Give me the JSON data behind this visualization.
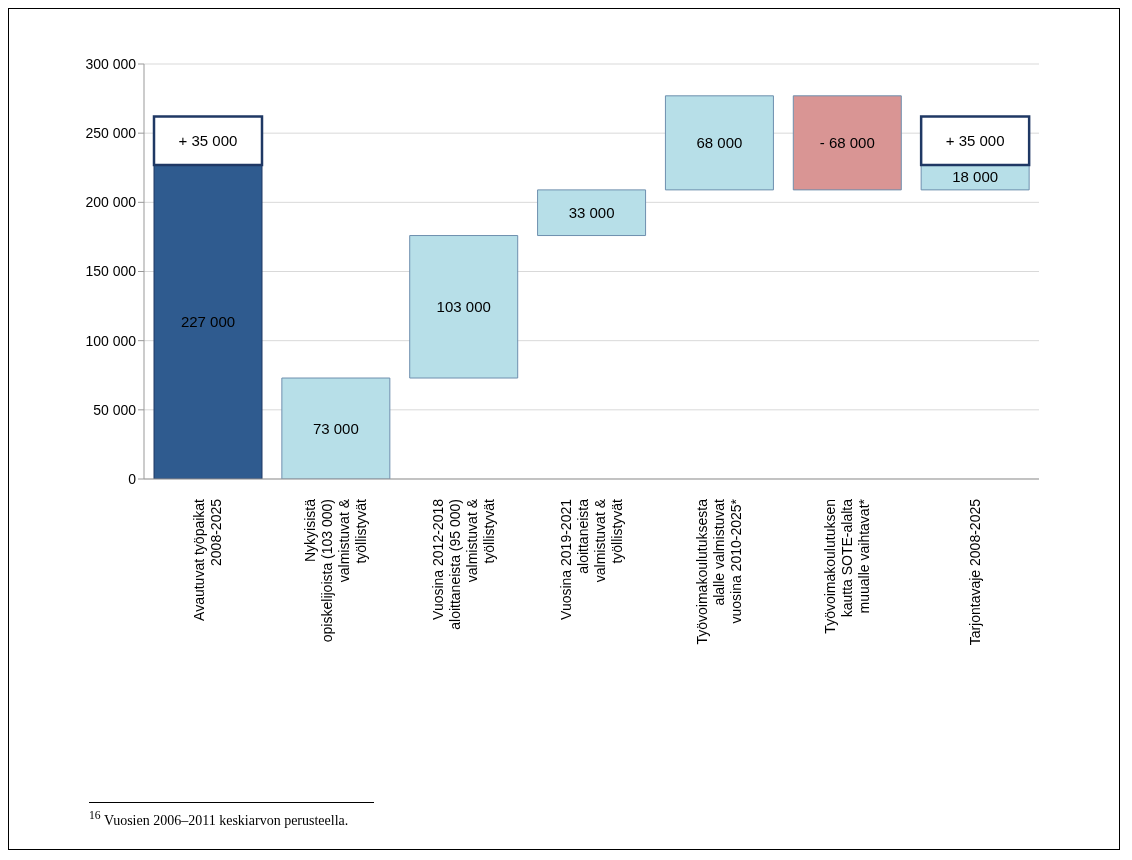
{
  "chart_data": {
    "type": "bar",
    "categories": [
      "Avautuvat työpaikat 2008-2025",
      "Nykyisistä opiskelijoista (103 000) valmistuvat & työllistyvät",
      "Vuosina 2012-2018 aloittaneista (95 000) valmistuvat & työllistyvät",
      "Vuosina 2019-2021 aloittaneista valmistuvat & työllistyvät",
      "Työvoimakoulutuksesta alalle valmistuvat vuosina 2010-2025*",
      "Työvoimakoulutuksen kautta SOTE-alalta muualle vaihtavat*",
      "Tarjontavaje 2008-2025"
    ],
    "series": [
      {
        "colors": [
          "#2f5b8f",
          "#b7dfe8",
          "#b7dfe8",
          "#b7dfe8",
          "#b7dfe8",
          "#d99594",
          "#b7dfe8"
        ],
        "values": [
          227000,
          73000,
          103000,
          33000,
          68000,
          -68000,
          18000
        ],
        "base": [
          0,
          0,
          73000,
          176000,
          209000,
          277000,
          209000
        ],
        "value_labels": [
          "227 000",
          "73 000",
          "103 000",
          "33 000",
          "68 000",
          "- 68 000",
          "18 000"
        ]
      },
      {
        "color": "#ffffff",
        "values": [
          35000,
          null,
          null,
          null,
          null,
          null,
          35000
        ],
        "base": [
          227000,
          null,
          null,
          null,
          null,
          null,
          227000
        ],
        "value_labels": [
          "+ 35 000",
          null,
          null,
          null,
          null,
          null,
          "+ 35 000"
        ]
      }
    ],
    "ylim": [
      0,
      300000
    ],
    "yticks": [
      0,
      {
        "value": 50000,
        "label": "50 000"
      },
      {
        "value": 100000,
        "label": "100 000"
      },
      {
        "value": 150000,
        "label": "150 000"
      },
      {
        "value": 200000,
        "label": "200 000"
      },
      {
        "value": 250000,
        "label": "250 000"
      },
      {
        "value": 300000,
        "label": "300 000"
      }
    ],
    "grid": "y",
    "annotations": [
      "$^{16}$ Vuosien 2006–2011 keskiarvon perusteella."
    ]
  }
}
